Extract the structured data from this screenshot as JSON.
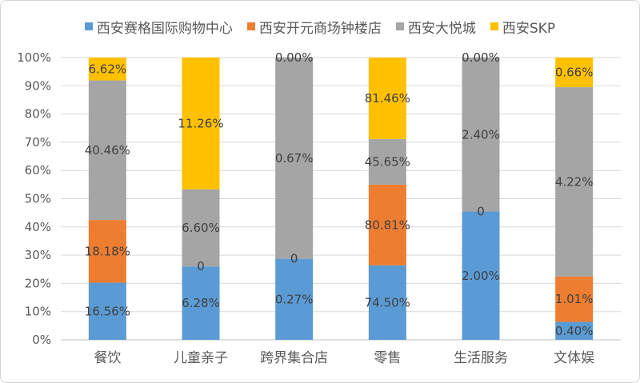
{
  "chart_data": {
    "type": "bar",
    "stacked": "percent",
    "categories": [
      "餐饮",
      "儿童亲子",
      "跨界集合店",
      "零售",
      "生活服务",
      "文体娱"
    ],
    "series": [
      {
        "name": "西安赛格国际购物中心",
        "color": "#5B9BD5",
        "values": [
          16.56,
          6.28,
          0.27,
          74.5,
          2.0,
          0.4
        ],
        "labels": [
          "16.56%",
          "6.28%",
          "0.27%",
          "74.50%",
          "2.00%",
          "0.40%"
        ]
      },
      {
        "name": "西安开元商场钟楼店",
        "color": "#ED7D31",
        "values": [
          18.18,
          0,
          0,
          80.81,
          0,
          1.01
        ],
        "labels": [
          "18.18%",
          "0",
          "0",
          "80.81%",
          "0",
          "1.01%"
        ]
      },
      {
        "name": "西安大悦城",
        "color": "#A5A5A5",
        "values": [
          40.46,
          6.6,
          0.67,
          45.65,
          2.4,
          4.22
        ],
        "labels": [
          "40.46%",
          "6.60%",
          "0.67%",
          "45.65%",
          "2.40%",
          "4.22%"
        ]
      },
      {
        "name": "西安SKP",
        "color": "#FFC000",
        "values": [
          6.62,
          11.26,
          0.0,
          81.46,
          0.0,
          0.66
        ],
        "labels": [
          "6.62%",
          "11.26%",
          "0.00%",
          "81.46%",
          "0.00%",
          "0.66%"
        ]
      }
    ],
    "y_ticks": [
      "0%",
      "10%",
      "20%",
      "30%",
      "40%",
      "50%",
      "60%",
      "70%",
      "80%",
      "90%",
      "100%"
    ],
    "ylim": [
      0,
      100
    ],
    "grid": true,
    "legend_position": "top"
  }
}
